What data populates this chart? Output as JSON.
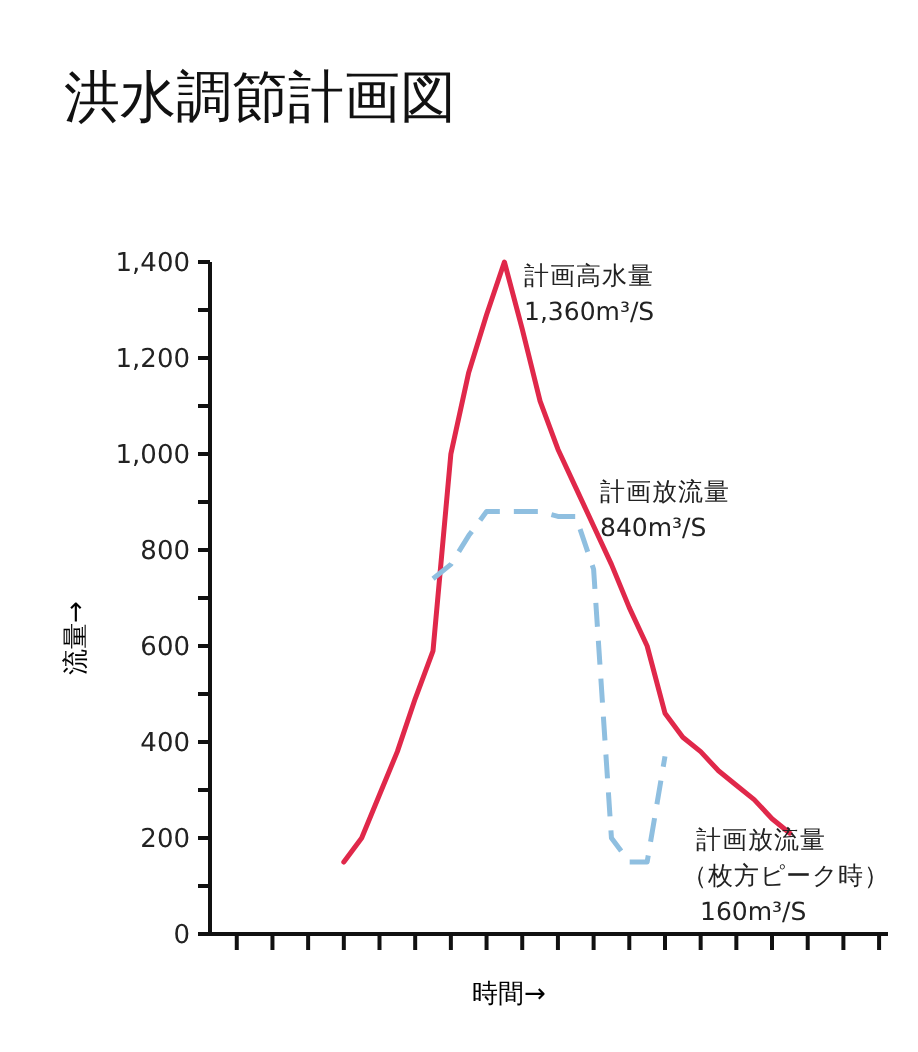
{
  "chart_data": {
    "type": "line",
    "title": "洪水調節計画図",
    "xlabel": "時間→",
    "ylabel": "流量→",
    "categories": [
      null,
      null,
      null,
      null,
      null,
      null,
      null,
      null,
      null,
      null,
      null,
      null,
      null,
      null,
      null,
      null,
      null,
      null,
      null,
      null,
      null,
      null,
      null,
      null,
      null,
      null,
      null,
      null,
      null,
      null,
      null,
      null,
      null,
      null,
      null,
      null,
      null,
      null
    ],
    "ylim": [
      0,
      1400
    ],
    "yticks": [
      0,
      {
        "value": 100,
        "label": null
      },
      200,
      {
        "value": 300,
        "label": null
      },
      400,
      {
        "value": 500,
        "label": null
      },
      600,
      {
        "value": 700,
        "label": null
      },
      800,
      {
        "value": 900,
        "label": null
      },
      {
        "value": 1000,
        "label": "1,000"
      },
      {
        "value": 1100,
        "label": null
      },
      {
        "value": 1200,
        "label": "1,200"
      },
      {
        "value": 1300,
        "label": null
      },
      {
        "value": 1400,
        "label": "1,400"
      }
    ],
    "marker": "none",
    "grid": false,
    "series": [
      {
        "color": "#e0284a",
        "line_style": "solid",
        "values": [
          null,
          null,
          null,
          null,
          null,
          null,
          null,
          150,
          200,
          290,
          380,
          490,
          590,
          1000,
          1170,
          1290,
          1400,
          1260,
          1110,
          1010,
          930,
          850,
          770,
          680,
          600,
          460,
          410,
          380,
          340,
          310,
          280,
          240,
          210,
          null,
          null,
          null,
          null,
          null
        ]
      },
      {
        "color": "#8fbfe0",
        "line_style": "dashed",
        "values": [
          null,
          null,
          null,
          null,
          null,
          null,
          null,
          null,
          null,
          null,
          null,
          null,
          740,
          770,
          830,
          880,
          880,
          880,
          880,
          870,
          870,
          760,
          200,
          150,
          150,
          370,
          null,
          null,
          null,
          null,
          null,
          null,
          null,
          null,
          null,
          null,
          null,
          null
        ]
      }
    ],
    "annotations": [
      "計画高水量",
      "1,360m³/S",
      "計画放流量",
      "840m³/S",
      "計画放流量",
      "（枚方ピーク時）",
      "160m³/S"
    ]
  }
}
